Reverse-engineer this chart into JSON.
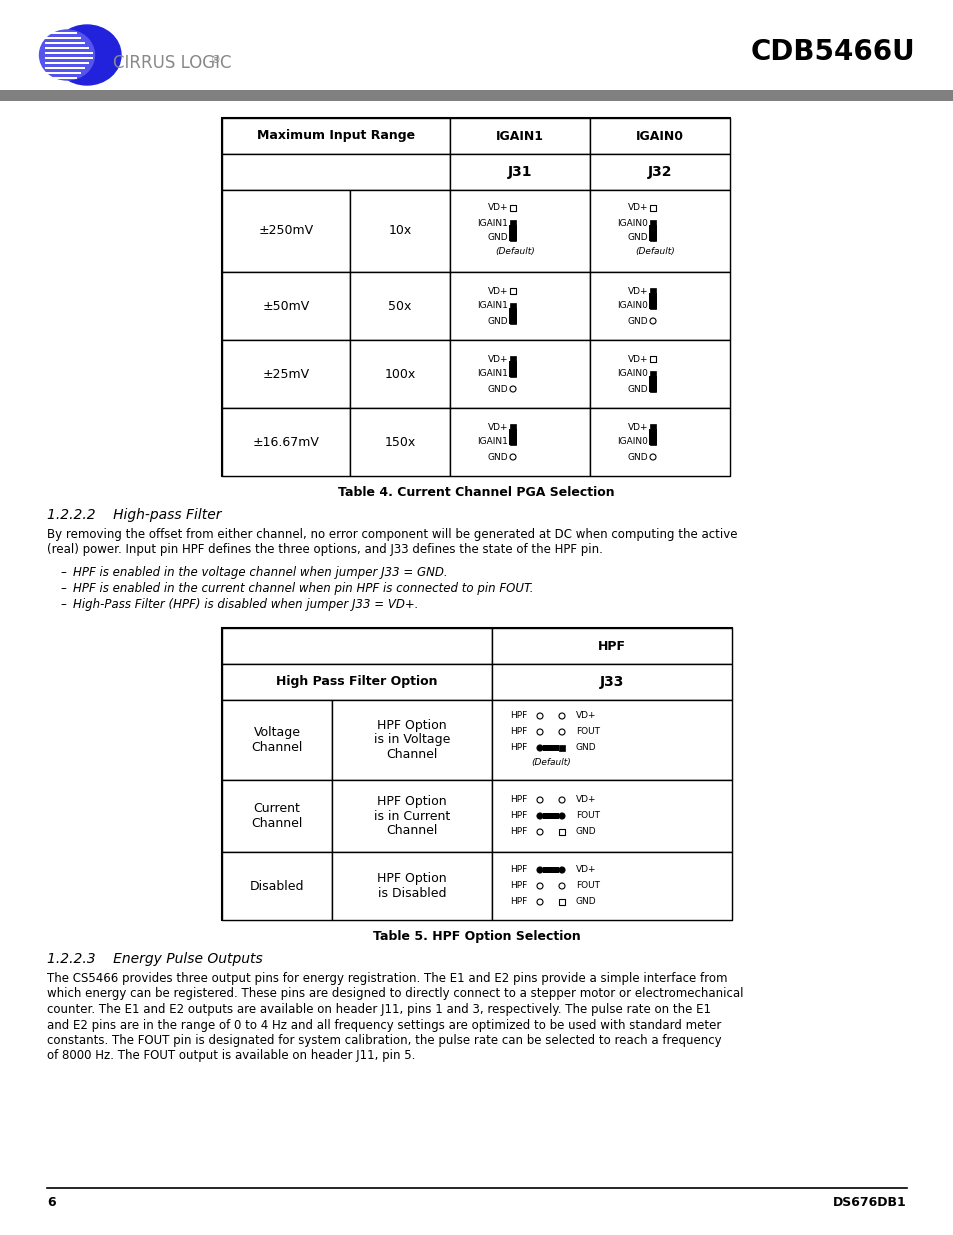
{
  "title": "CDB5466U",
  "logo_text": "CIRRUS LOGIC",
  "page_number": "6",
  "doc_number": "DS676DB1",
  "gray_bar_color": "#808080",
  "table1_caption": "Table 4. Current Channel PGA Selection",
  "table2_caption": "Table 5. HPF Option Selection",
  "section_title1": "1.2.2.2    High-pass Filter",
  "section_title2": "1.2.2.3    Energy Pulse Outputs",
  "section1_para1": "By removing the offset from either channel, no error component will be generated at DC when computing the active",
  "section1_para2": "(real) power. Input pin HPF defines the three options, and J33 defines the state of the HPF pin.",
  "section1_bullets": [
    "HPF is enabled in the voltage channel when jumper J33 = GND.",
    "HPF is enabled in the current channel when pin HPF is connected to pin FOUT.",
    "High-Pass Filter (HPF) is disabled when jumper J33 = VD+."
  ],
  "section2_lines": [
    "The CS5466 provides three output pins for energy registration. The E1 and E2 pins provide a simple interface from",
    "which energy can be registered. These pins are designed to directly connect to a stepper motor or electromechanical",
    "counter. The E1 and E2 outputs are available on header J11, pins 1 and 3, respectively. The pulse rate on the E1",
    "and E2 pins are in the range of 0 to 4 Hz and all frequency settings are optimized to be used with standard meter",
    "constants. The FOUT pin is designated for system calibration, the pulse rate can be selected to reach a frequency",
    "of 8000 Hz. The FOUT output is available on header J11, pin 5."
  ]
}
